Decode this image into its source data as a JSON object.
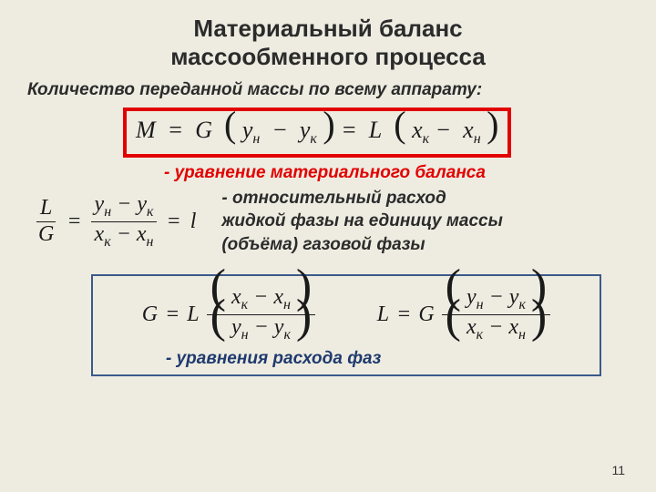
{
  "title_line1": "Материальный баланс",
  "title_line2": "массообменного процесса",
  "subtitle": "Количество переданной массы по всему аппарату:",
  "eq1": {
    "M": "M",
    "eq": "=",
    "G": "G",
    "lpar": "(",
    "y_n": "y",
    "y_n_sub": "н",
    "minus": "−",
    "y_k": "y",
    "y_k_sub": "к",
    "rpar": ")",
    "eq2": "=",
    "L": "L",
    "lpar2": "(",
    "x_k": "x",
    "x_k_sub": "к",
    "minus2": "−",
    "x_n": "x",
    "x_n_sub": "н",
    "rpar2": ")"
  },
  "caption1": "-  уравнение материального баланса",
  "eq2": {
    "L": "L",
    "G": "G",
    "eq": "=",
    "num": {
      "a": "y",
      "as": "н",
      "m": "−",
      "b": "y",
      "bs": "к"
    },
    "den": {
      "a": "x",
      "as": "к",
      "m": "−",
      "b": "x",
      "bs": "н"
    },
    "eq2": "=",
    "l": "l"
  },
  "desc_line1": "-   относительный  расход",
  "desc_line2": "жидкой фазы на единицу массы",
  "desc_line3": "(объёма) газовой фазы",
  "eq3a": {
    "G": "G",
    "eq": "=",
    "L": "L",
    "num": {
      "a": "x",
      "as": "к",
      "m": "−",
      "b": "x",
      "bs": "н"
    },
    "den": {
      "a": "y",
      "as": "н",
      "m": "−",
      "b": "y",
      "bs": "к"
    }
  },
  "eq3b": {
    "L": "L",
    "eq": "=",
    "G": "G",
    "num": {
      "a": "y",
      "as": "н",
      "m": "−",
      "b": "y",
      "bs": "к"
    },
    "den": {
      "a": "x",
      "as": "к",
      "m": "−",
      "b": "x",
      "bs": "н"
    }
  },
  "caption2": "- уравнения расхода фаз",
  "page": "11",
  "colors": {
    "bg": "#eeece1",
    "red": "#e20000",
    "blue_border": "#3b5a8a",
    "blue_text": "#1f3a6e",
    "text": "#2b2b2b"
  }
}
